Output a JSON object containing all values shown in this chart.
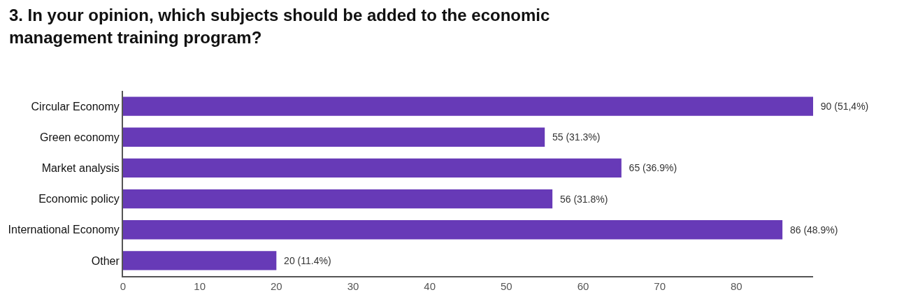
{
  "chart_data": {
    "type": "bar",
    "orientation": "horizontal",
    "title": "3. In your opinion, which subjects should be added to the economic management training program?",
    "categories": [
      "Circular Economy",
      "Green economy",
      "Market analysis",
      "Economic policy",
      "International Economy",
      "Other"
    ],
    "values": [
      90,
      55,
      65,
      56,
      86,
      20
    ],
    "value_labels": [
      "90 (51,4%)",
      "55 (31.3%)",
      "65 (36.9%)",
      "56 (31.8%)",
      "86 (48.9%)",
      "20 (11.4%)"
    ],
    "color": "#673ab7",
    "xlim": [
      0,
      90
    ],
    "xticks": [
      0,
      10,
      20,
      30,
      40,
      50,
      60,
      70,
      80
    ],
    "legend": false
  }
}
